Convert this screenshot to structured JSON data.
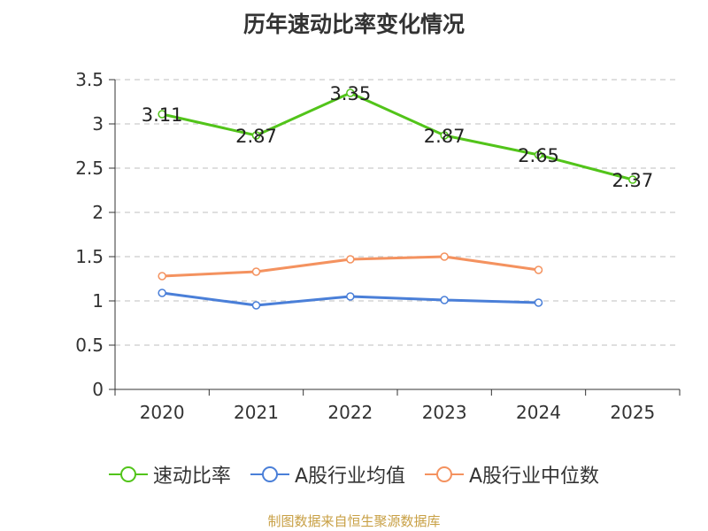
{
  "chart_data": {
    "type": "line",
    "title": "历年速动比率变化情况",
    "categories": [
      "2020",
      "2021",
      "2022",
      "2023",
      "2024",
      "2025"
    ],
    "series": [
      {
        "name": "速动比率",
        "values": [
          3.11,
          2.87,
          3.35,
          2.87,
          2.65,
          2.37
        ],
        "color": "#52c41a",
        "show_labels": true
      },
      {
        "name": "A股行业均值",
        "values": [
          1.09,
          0.95,
          1.05,
          1.01,
          0.98,
          null
        ],
        "color": "#4a7fd8",
        "show_labels": false
      },
      {
        "name": "A股行业中位数",
        "values": [
          1.28,
          1.33,
          1.47,
          1.5,
          1.35,
          null
        ],
        "color": "#f4925f",
        "show_labels": false
      }
    ],
    "ylim": [
      0,
      3.5
    ],
    "yticks": [
      "0",
      "0.5",
      "1",
      "1.5",
      "2",
      "2.5",
      "3",
      "3.5"
    ],
    "xlabel": "",
    "ylabel": "",
    "grid": true,
    "legend_position": "bottom"
  },
  "data_labels": [
    "3.11",
    "2.87",
    "3.35",
    "2.87",
    "2.65",
    "2.37"
  ],
  "source": "制图数据来自恒生聚源数据库"
}
